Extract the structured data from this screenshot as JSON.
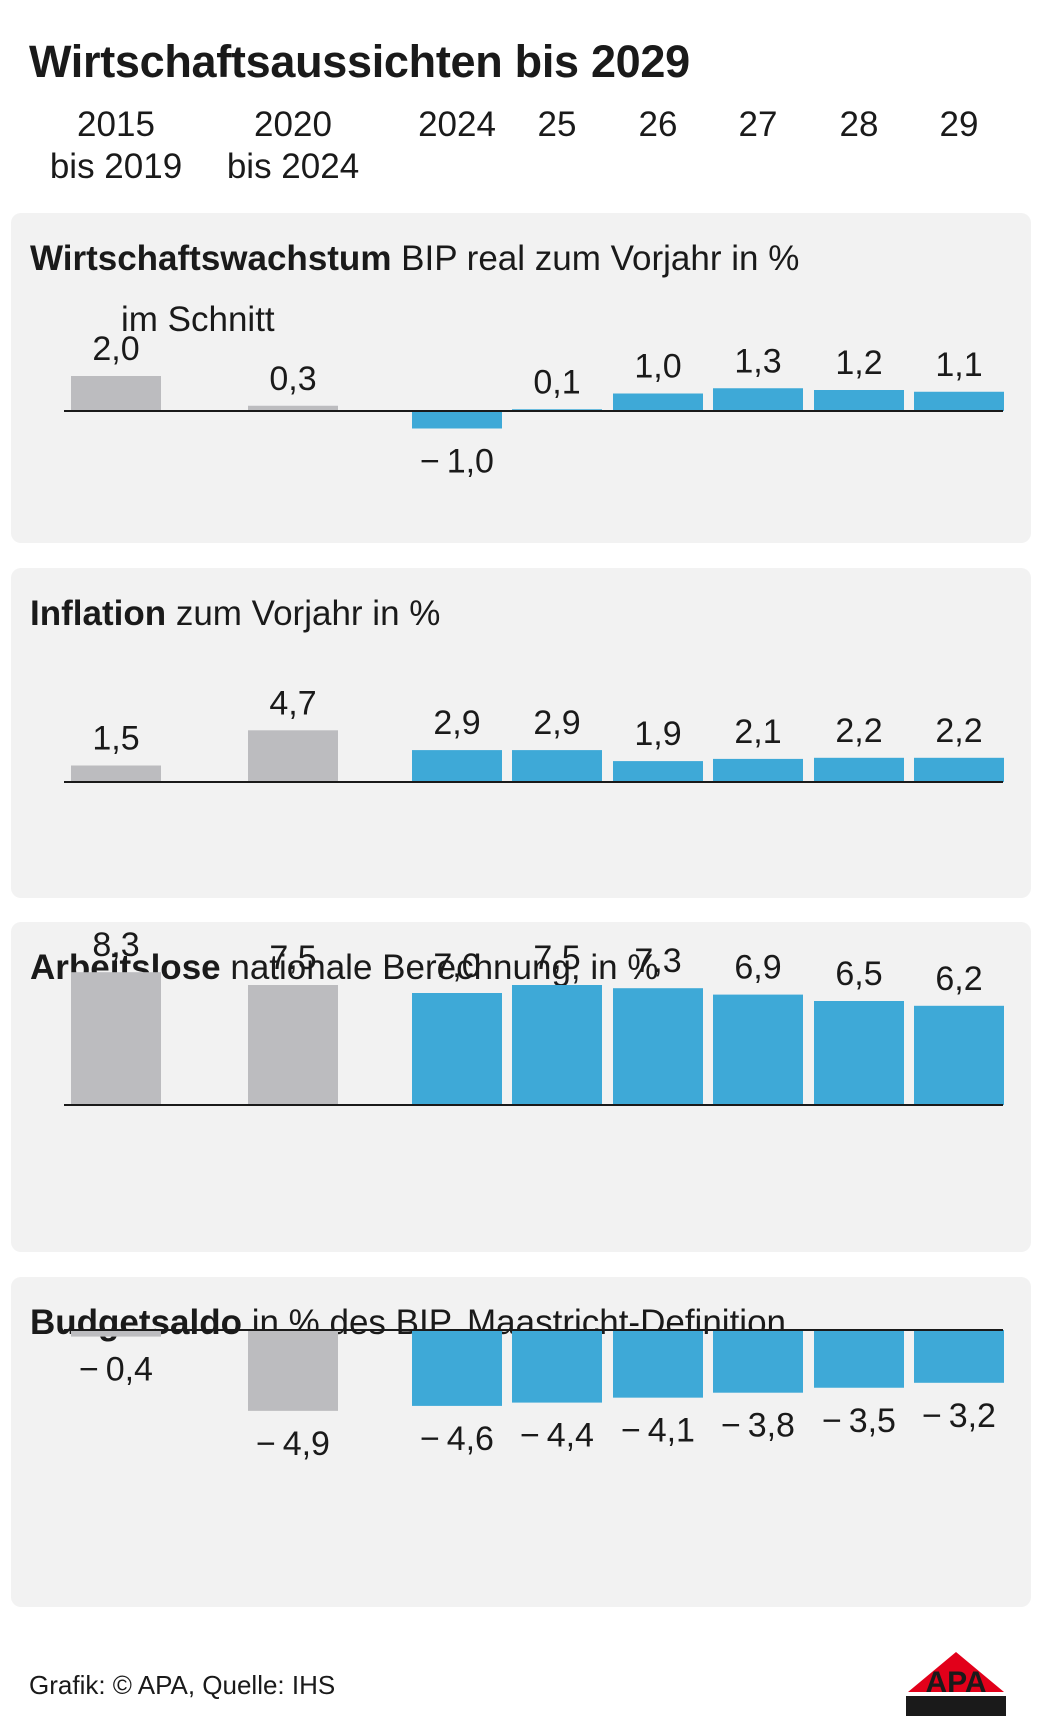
{
  "title": "Wirtschaftsaussichten bis 2029",
  "column_labels": [
    "2015\nbis 2019",
    "2020\nbis 2024",
    "2024",
    "25",
    "26",
    "27",
    "28",
    "29"
  ],
  "colors": {
    "average": "#bcbcbf",
    "annual": "#3ea9d7",
    "panel_bg": "#f2f2f2",
    "baseline": "#1a1a1a"
  },
  "chart_data": [
    {
      "type": "bar",
      "title": "Wirtschaftswachstum",
      "subtitle": "BIP real zum Vorjahr in %",
      "note": "im Schnitt",
      "categories": [
        "2015 bis 2019",
        "2020 bis 2024",
        "2024",
        "25",
        "26",
        "27",
        "28",
        "29"
      ],
      "values": [
        2.0,
        0.3,
        -1.0,
        0.1,
        1.0,
        1.3,
        1.2,
        1.1
      ],
      "labels": [
        "2,0",
        "0,3",
        "− 1,0",
        "0,1",
        "1,0",
        "1,3",
        "1,2",
        "1,1"
      ]
    },
    {
      "type": "bar",
      "title": "Inflation",
      "subtitle": "zum Vorjahr in %",
      "categories": [
        "2015 bis 2019",
        "2020 bis 2024",
        "2024",
        "25",
        "26",
        "27",
        "28",
        "29"
      ],
      "values": [
        1.5,
        4.7,
        2.9,
        2.9,
        1.9,
        2.1,
        2.2,
        2.2
      ],
      "labels": [
        "1,5",
        "4,7",
        "2,9",
        "2,9",
        "1,9",
        "2,1",
        "2,2",
        "2,2"
      ]
    },
    {
      "type": "bar",
      "title": "Arbeitslose",
      "subtitle": "nationale Berechnung, in %",
      "categories": [
        "2015 bis 2019",
        "2020 bis 2024",
        "2024",
        "25",
        "26",
        "27",
        "28",
        "29"
      ],
      "values": [
        8.3,
        7.5,
        7.0,
        7.5,
        7.3,
        6.9,
        6.5,
        6.2
      ],
      "labels": [
        "8,3",
        "7,5",
        "7,0",
        "7,5",
        "7,3",
        "6,9",
        "6,5",
        "6,2"
      ]
    },
    {
      "type": "bar",
      "title": "Budgetsaldo",
      "subtitle": "in % des BIP, Maastricht-Definition",
      "categories": [
        "2015 bis 2019",
        "2020 bis 2024",
        "2024",
        "25",
        "26",
        "27",
        "28",
        "29"
      ],
      "values": [
        -0.4,
        -4.9,
        -4.6,
        -4.4,
        -4.1,
        -3.8,
        -3.5,
        -3.2
      ],
      "labels": [
        "− 0,4",
        "− 4,9",
        "− 4,6",
        "− 4,4",
        "− 4,1",
        "− 3,8",
        "− 3,5",
        "− 3,2"
      ]
    }
  ],
  "footer": "Grafik: © APA, Quelle: IHS",
  "logo_text": "APA"
}
